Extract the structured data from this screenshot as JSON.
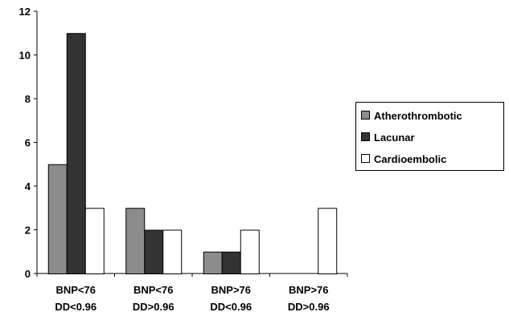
{
  "chart_data": {
    "type": "bar",
    "categories": [
      [
        "BNP<76",
        "DD<0.96"
      ],
      [
        "BNP<76",
        "DD>0.96"
      ],
      [
        "BNP>76",
        "DD<0.96"
      ],
      [
        "BNP>76",
        "DD>0.96"
      ]
    ],
    "series": [
      {
        "name": "Atherothrombotic",
        "values": [
          5,
          3,
          1,
          0
        ],
        "color": "#8c8c8c"
      },
      {
        "name": "Lacunar",
        "values": [
          11,
          2,
          1,
          0
        ],
        "color": "#333333"
      },
      {
        "name": "Cardioembolic",
        "values": [
          3,
          2,
          2,
          3
        ],
        "color": "#ffffff"
      }
    ],
    "ylim": [
      0,
      12
    ],
    "yticks": [
      0,
      2,
      4,
      6,
      8,
      10,
      12
    ],
    "title": "",
    "xlabel": "",
    "ylabel": "",
    "grid": false,
    "legend_position": "right"
  }
}
